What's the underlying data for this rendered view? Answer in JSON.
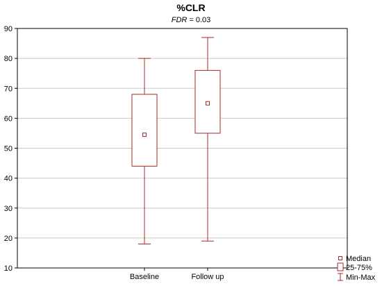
{
  "chart_data": {
    "type": "boxplot",
    "title": "%CLR",
    "subtitle": {
      "italic": "FDR",
      "rest": " = 0.03"
    },
    "categories": [
      "Baseline",
      "Follow up"
    ],
    "boxes": [
      {
        "category": "Baseline",
        "min": 18,
        "q1": 44,
        "median": 54.5,
        "q3": 68,
        "max": 80
      },
      {
        "category": "Follow up",
        "min": 19,
        "q1": 55,
        "median": 65,
        "q3": 76,
        "max": 87
      }
    ],
    "ylim": [
      10,
      90
    ],
    "yticks": [
      10,
      20,
      30,
      40,
      50,
      60,
      70,
      80,
      90
    ],
    "grid": true,
    "legend_position": "bottom-right",
    "legend": [
      "Median",
      "25-75%",
      "Min-Max"
    ],
    "colors": {
      "box": "#a52a2a",
      "grid": "#c8c8c8",
      "axis": "#000000"
    }
  }
}
